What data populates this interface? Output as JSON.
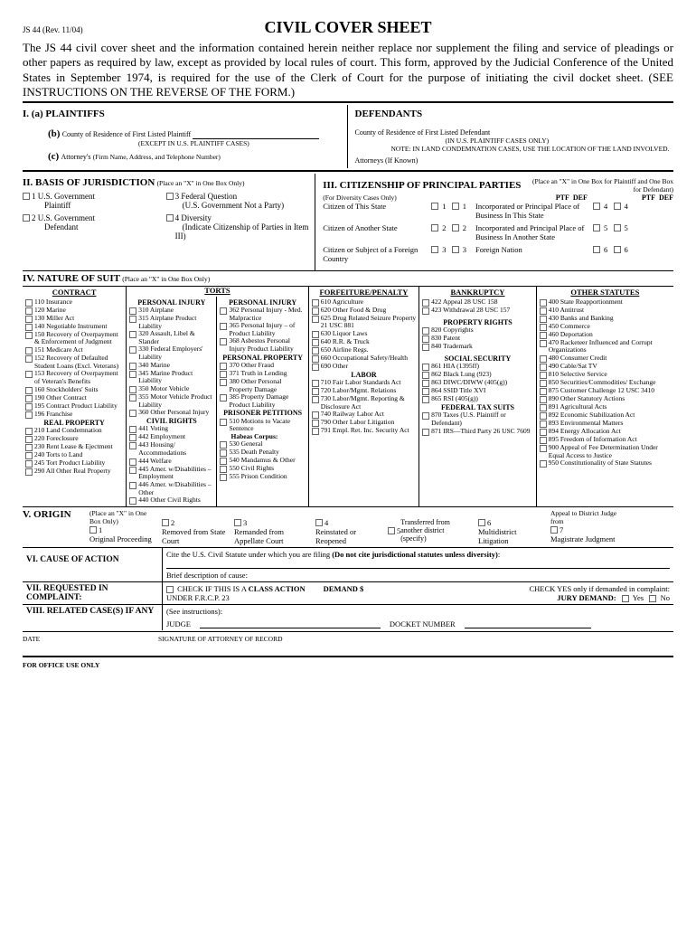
{
  "form_id": "JS 44 (Rev. 11/04)",
  "title": "CIVIL COVER SHEET",
  "intro": "The JS 44 civil cover sheet and the information contained herein neither replace nor supplement the filing and service of pleadings or other papers as required by law, except as provided by local rules of court. This form, approved by the Judicial Conference of the United States in September 1974, is required for the use of the Clerk of Court for the purpose of initiating the civil docket sheet. (SEE INSTRUCTIONS ON THE REVERSE OF THE FORM.)",
  "s1": {
    "plaintiffs": "I.   (a)  PLAINTIFFS",
    "defendants": "DEFENDANTS",
    "b_label": "(b)",
    "b_text": "County of Residence of First Listed Plaintiff",
    "b_note": "(EXCEPT IN U.S. PLAINTIFF CASES)",
    "def_county": "County of Residence of First Listed Defendant",
    "def_note1": "(IN U.S. PLAINTIFF CASES ONLY)",
    "def_note2": "NOTE:   IN LAND CONDEMNATION CASES, USE THE LOCATION OF THE LAND INVOLVED.",
    "c_label": "(c)",
    "c_text": "Attorney's",
    "c_note": "(Firm Name, Address, and Telephone Number)",
    "def_attys": "Attorneys (If Known)"
  },
  "s2": {
    "title": "II. BASIS OF JURISDICTION",
    "note": "(Place an \"X\" in One Box Only)",
    "o1a": "1 U.S. Government",
    "o1b": "Plaintiff",
    "o2a": "2 U.S. Government",
    "o2b": "Defendant",
    "o3a": "3 Federal Question",
    "o3b": "(U.S. Government Not a Party)",
    "o4a": "4 Diversity",
    "o4b": "(Indicate Citizenship of Parties in Item III)"
  },
  "s3": {
    "title": "III. CITIZENSHIP OF PRINCIPAL PARTIES",
    "note": "(Place an \"X\" in One Box for Plaintiff and One Box for Defendant)",
    "sub": "(For Diversity Cases Only)",
    "ptf": "PTF",
    "def": "DEF",
    "r1a": "Citizen of This State",
    "r1b": "Incorporated or Principal Place of Business In This State",
    "r2a": "Citizen of Another State",
    "r2b": "Incorporated and Principal Place of Business In Another State",
    "r3a": "Citizen or Subject of a Foreign Country",
    "r3b": "Foreign Nation"
  },
  "s4": {
    "title": "IV. NATURE OF SUIT",
    "note": "(Place an \"X\" in One Box Only)",
    "h_contract": "CONTRACT",
    "h_torts": "TORTS",
    "h_forf": "FORFEITURE/PENALTY",
    "h_bank": "BANKRUPTCY",
    "h_other": "OTHER STATUTES",
    "contract": [
      "110 Insurance",
      "120 Marine",
      "130 Miller Act",
      "140 Negotiable Instrument",
      "150 Recovery of Overpayment & Enforcement of Judgment",
      "151 Medicare Act",
      "152 Recovery of Defaulted Student Loans (Excl. Veterans)",
      "153 Recovery of Overpayment of Veteran's Benefits",
      "160 Stockholders' Suits",
      "190 Other Contract",
      "195 Contract Product Liability",
      "196 Franchise"
    ],
    "realprop_h": "REAL PROPERTY",
    "realprop": [
      "210 Land Condemnation",
      "220 Foreclosure",
      "230 Rent Lease & Ejectment",
      "240 Torts to Land",
      "245 Tort Product Liability",
      "290 All Other Real Property"
    ],
    "pi1_h": "PERSONAL INJURY",
    "pi1": [
      "310 Airplane",
      "315 Airplane Product Liability",
      "320 Assault, Libel & Slander",
      "330 Federal Employers' Liability",
      "340 Marine",
      "345 Marine Product Liability",
      "350 Motor Vehicle",
      "355 Motor Vehicle Product Liability",
      "360 Other Personal Injury"
    ],
    "civil_h": "CIVIL RIGHTS",
    "civil": [
      "441 Voting",
      "442 Employment",
      "443 Housing/ Accommodations",
      "444 Welfare",
      "445 Amer. w/Disabilities – Employment",
      "446 Amer. w/Disabilities – Other",
      "440 Other Civil Rights"
    ],
    "pi2_h": "PERSONAL INJURY",
    "pi2": [
      "362 Personal Injury - Med. Malpractice",
      "365 Personal Injury – of Product Liability",
      "368 Asbestos Personal Injury Product Liability"
    ],
    "pp_h": "PERSONAL PROPERTY",
    "pp": [
      "370 Other Fraud",
      "371 Truth in Lending",
      "380 Other Personal Property Damage",
      "385 Property Damage Product Liability"
    ],
    "prisoner_h": "PRISONER PETITIONS",
    "prisoner1": [
      "510 Motions to Vacate Sentence"
    ],
    "habeas": "Habeas Corpus:",
    "prisoner2": [
      "530 General",
      "535 Death Penalty",
      "540 Mandamus & Other",
      "550 Civil Rights",
      "555 Prison Condition"
    ],
    "forf": [
      "610 Agriculture",
      "620 Other Food & Drug",
      "625 Drug Related Seizure Property 21 USC 881",
      "630 Liquor Laws",
      "640 R.R. & Truck",
      "650 Airline Regs.",
      "660 Occupational Safety/Health",
      "690 Other"
    ],
    "labor_h": "LABOR",
    "labor": [
      "710 Fair Labor Standards Act",
      "720 Labor/Mgmt. Relations",
      "730 Labor/Mgmt. Reporting & Disclosure Act",
      "740 Railway Labor Act",
      "790 Other Labor Litigation",
      "791 Empl. Ret. Inc. Security Act"
    ],
    "bank": [
      "422 Appeal 28 USC 158",
      "423 Withdrawal 28 USC 157"
    ],
    "prop_h": "PROPERTY RIGHTS",
    "prop": [
      "820 Copyrights",
      "830 Patent",
      "840 Trademark"
    ],
    "ss_h": "SOCIAL SECURITY",
    "ss": [
      "861 HIA (1395ff)",
      "862 Black Lung (923)",
      "863 DIWC/DIWW (405(g))",
      "864 SSID Title XVI",
      "865 RSI (405(g))"
    ],
    "tax_h": "FEDERAL TAX SUITS",
    "tax": [
      "870 Taxes (U.S. Plaintiff or Defendant)",
      "871 IRS—Third Party 26 USC 7609"
    ],
    "other": [
      "400 State Reapportionment",
      "410 Antitrust",
      "430 Banks and Banking",
      "450 Commerce",
      "460 Deportation",
      "470 Racketeer Influenced and Corrupt Organizations",
      "480 Consumer Credit",
      "490 Cable/Sat TV",
      "810 Selective Service",
      "850 Securities/Commodities/ Exchange",
      "875 Customer Challenge 12 USC 3410",
      "890 Other Statutory Actions",
      "891 Agricultural Acts",
      "892 Economic Stabilization Act",
      "893 Environmental Matters",
      "894 Energy Allocation Act",
      "895 Freedom of Information Act",
      "900 Appeal of Fee Determination Under Equal Access to Justice",
      "950 Constitutionality of State Statutes"
    ]
  },
  "s5": {
    "title": "V. ORIGIN",
    "note": "(Place an \"X\" in One Box Only)",
    "o1": "Original Proceeding",
    "o2": "Removed from State Court",
    "o3": "Remanded from Appellate Court",
    "o4": "Reinstated or Reopened",
    "o5": "Transferred from another district (specify)",
    "o6": "Multidistrict Litigation",
    "o7top": "Appeal to District Judge from",
    "o7": "Magistrate Judgment"
  },
  "s6": {
    "title": "VI. CAUSE OF ACTION",
    "line1": "Cite the U.S. Civil Statute under which you are filing (Do not cite jurisdictional statutes unless diversity):",
    "line2": "Brief description of cause:"
  },
  "s7": {
    "title": "VII. REQUESTED IN COMPLAINT:",
    "class": "CHECK IF THIS IS A CLASS ACTION",
    "frcp": "UNDER F.R.C.P. 23",
    "demand": "DEMAND $",
    "jury1": "CHECK YES only if demanded in complaint:",
    "jury2": "JURY DEMAND:",
    "yes": "Yes",
    "no": "No"
  },
  "s8": {
    "title": "VIII. RELATED CASE(S) IF ANY",
    "see": "(See instructions):",
    "judge": "JUDGE",
    "docket": "DOCKET NUMBER"
  },
  "date": "DATE",
  "sig": "SIGNATURE OF ATTORNEY OF RECORD",
  "office": "FOR OFFICE USE ONLY"
}
